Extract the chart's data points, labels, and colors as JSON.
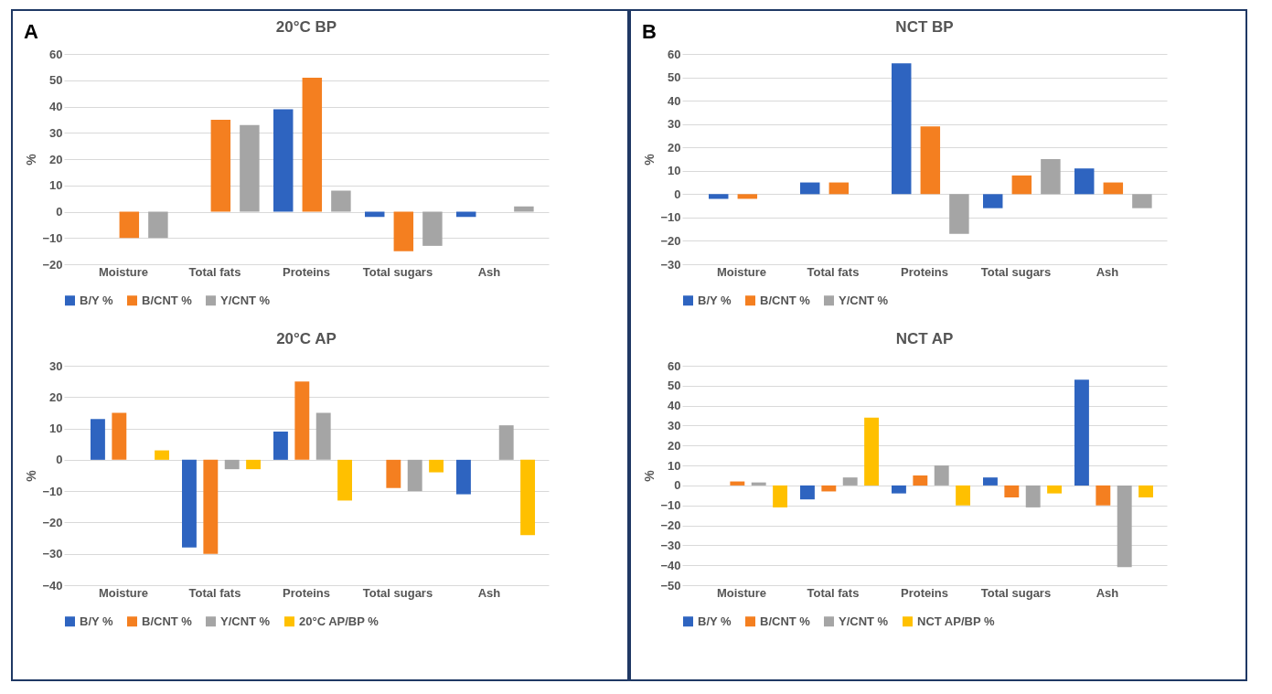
{
  "chart_data": [
    {
      "type": "bar",
      "title": "20°C BP",
      "ylabel": "%",
      "annotations": [
        "A"
      ],
      "categories": [
        "Moisture",
        "Total fats",
        "Proteins",
        "Total sugars",
        "Ash"
      ],
      "ylim": [
        -20,
        60
      ],
      "yticks": [
        -20,
        -10,
        0,
        10,
        20,
        30,
        40,
        50,
        60
      ],
      "grid": "y",
      "legend": "bottom",
      "series": [
        {
          "name": "B/Y %",
          "color": "#2e64c0",
          "values": [
            null,
            null,
            39,
            -2,
            -2
          ]
        },
        {
          "name": "B/CNT %",
          "color": "#f47f20",
          "values": [
            -10,
            35,
            51,
            -15,
            null
          ]
        },
        {
          "name": "Y/CNT %",
          "color": "#a5a5a5",
          "values": [
            -10,
            33,
            8,
            -13,
            2
          ]
        }
      ]
    },
    {
      "type": "bar",
      "title": "20°C AP",
      "ylabel": "%",
      "categories": [
        "Moisture",
        "Total fats",
        "Proteins",
        "Total sugars",
        "Ash"
      ],
      "ylim": [
        -40,
        30
      ],
      "yticks": [
        -40,
        -30,
        -20,
        -10,
        0,
        10,
        20,
        30
      ],
      "grid": "y",
      "legend": "bottom",
      "series": [
        {
          "name": "B/Y %",
          "color": "#2e64c0",
          "values": [
            13,
            -28,
            9,
            null,
            -11
          ]
        },
        {
          "name": "B/CNT %",
          "color": "#f47f20",
          "values": [
            15,
            -30,
            25,
            -9,
            null
          ]
        },
        {
          "name": "Y/CNT %",
          "color": "#a5a5a5",
          "values": [
            null,
            -3,
            15,
            -10,
            11
          ]
        },
        {
          "name": "20°C AP/BP %",
          "color": "#ffc000",
          "values": [
            3,
            -3,
            -13,
            -4,
            -24
          ]
        }
      ]
    },
    {
      "type": "bar",
      "title": "NCT BP",
      "ylabel": "%",
      "annotations": [
        "B"
      ],
      "categories": [
        "Moisture",
        "Total fats",
        "Proteins",
        "Total sugars",
        "Ash"
      ],
      "ylim": [
        -30,
        60
      ],
      "yticks": [
        -30,
        -20,
        -10,
        0,
        10,
        20,
        30,
        40,
        50,
        60
      ],
      "grid": "y",
      "legend": "bottom",
      "series": [
        {
          "name": "B/Y %",
          "color": "#2e64c0",
          "values": [
            -2,
            5,
            56,
            -6,
            11
          ]
        },
        {
          "name": "B/CNT %",
          "color": "#f47f20",
          "values": [
            -2,
            5,
            29,
            8,
            5
          ]
        },
        {
          "name": "Y/CNT %",
          "color": "#a5a5a5",
          "values": [
            null,
            null,
            -17,
            15,
            -6
          ]
        }
      ]
    },
    {
      "type": "bar",
      "title": "NCT AP",
      "ylabel": "%",
      "categories": [
        "Moisture",
        "Total fats",
        "Proteins",
        "Total sugars",
        "Ash"
      ],
      "ylim": [
        -50,
        60
      ],
      "yticks": [
        -50,
        -40,
        -30,
        -20,
        -10,
        0,
        10,
        20,
        30,
        40,
        50,
        60
      ],
      "grid": "y",
      "legend": "bottom",
      "series": [
        {
          "name": "B/Y %",
          "color": "#2e64c0",
          "values": [
            null,
            -7,
            -4,
            4,
            53
          ]
        },
        {
          "name": "B/CNT %",
          "color": "#f47f20",
          "values": [
            2,
            -3,
            5,
            -6,
            -10
          ]
        },
        {
          "name": "Y/CNT %",
          "color": "#a5a5a5",
          "values": [
            1.5,
            4,
            10,
            -11,
            -41
          ]
        },
        {
          "name": "NCT AP/BP %",
          "color": "#ffc000",
          "values": [
            -11,
            34,
            -10,
            -4,
            -6
          ]
        }
      ]
    }
  ]
}
